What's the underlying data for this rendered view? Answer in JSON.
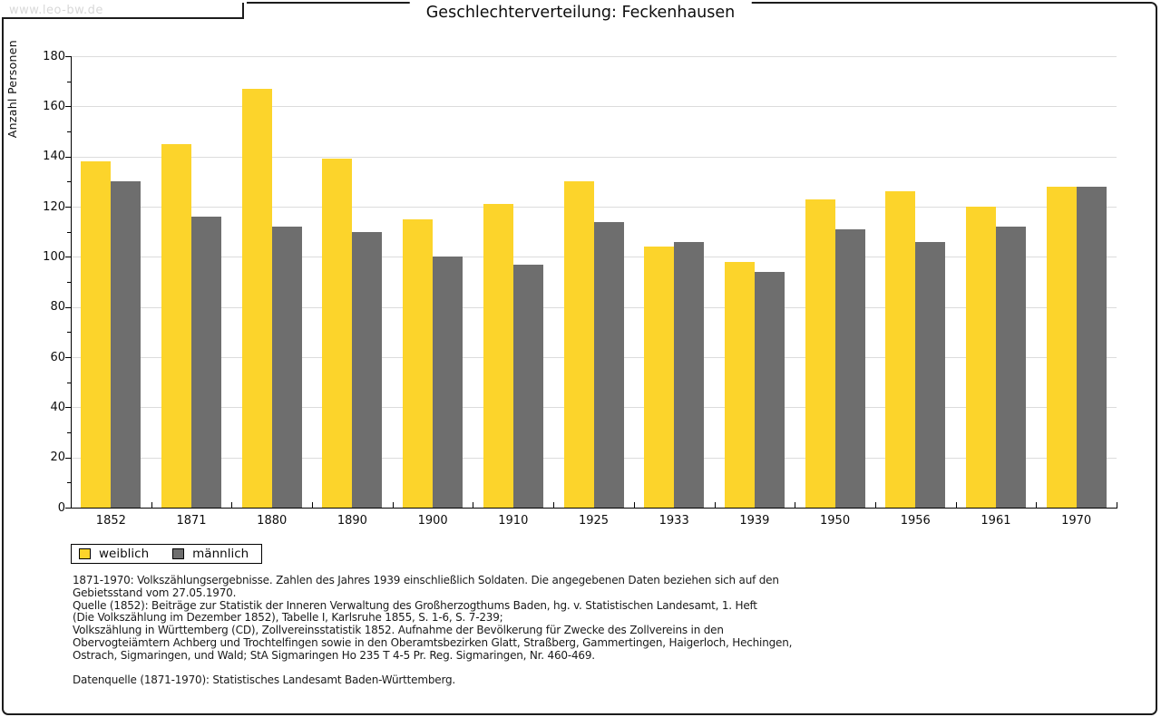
{
  "header": {
    "watermark": "www.leo-bw.de",
    "title": "Geschlechterverteilung: Feckenhausen"
  },
  "chart_data": {
    "type": "bar",
    "title": "Geschlechterverteilung: Feckenhausen",
    "ylabel": "Anzahl Personen",
    "xlabel": "",
    "ylim": [
      0,
      180
    ],
    "ytick_step": 20,
    "grid": "horizontal",
    "legend_position": "bottom-left",
    "categories": [
      "1852",
      "1871",
      "1880",
      "1890",
      "1900",
      "1910",
      "1925",
      "1933",
      "1939",
      "1950",
      "1956",
      "1961",
      "1970"
    ],
    "series": [
      {
        "name": "weiblich",
        "color": "#fcd42b",
        "values": [
          138,
          145,
          167,
          139,
          115,
          121,
          130,
          104,
          98,
          123,
          126,
          120,
          128
        ]
      },
      {
        "name": "männlich",
        "color": "#6e6e6e",
        "values": [
          130,
          116,
          112,
          110,
          100,
          97,
          114,
          106,
          94,
          111,
          106,
          112,
          128
        ]
      }
    ]
  },
  "legend": {
    "items": [
      {
        "label": "weiblich",
        "color": "#fcd42b"
      },
      {
        "label": "männlich",
        "color": "#6e6e6e"
      }
    ]
  },
  "footnotes": [
    "1871-1970: Volkszählungsergebnisse. Zahlen des Jahres 1939 einschließlich Soldaten. Die angegebenen Daten beziehen sich auf den",
    "Gebietsstand vom 27.05.1970.",
    "Quelle (1852): Beiträge zur Statistik der Inneren Verwaltung des Großherzogthums Baden, hg. v. Statistischen Landesamt, 1. Heft",
    "(Die Volkszählung im Dezember 1852), Tabelle I, Karlsruhe 1855, S. 1-6, S. 7-239;",
    "Volkszählung in Württemberg (CD), Zollvereinsstatistik 1852. Aufnahme der Bevölkerung für Zwecke des Zollvereins in den",
    "Obervogteiämtern Achberg und Trochtelfingen sowie in den Oberamtsbezirken Glatt, Straßberg, Gammertingen, Haigerloch, Hechingen,",
    "Ostrach, Sigmaringen, und Wald; StA Sigmaringen Ho 235 T 4-5 Pr. Reg. Sigmaringen, Nr. 460-469.",
    "",
    "Datenquelle (1871-1970): Statistisches Landesamt Baden-Württemberg."
  ],
  "colors": {
    "weiblich": "#fcd42b",
    "männlich": "#6e6e6e",
    "gridline": "#dcdcdc",
    "frame": "#1c1c1c",
    "watermark_text": "#d8d8d8"
  }
}
